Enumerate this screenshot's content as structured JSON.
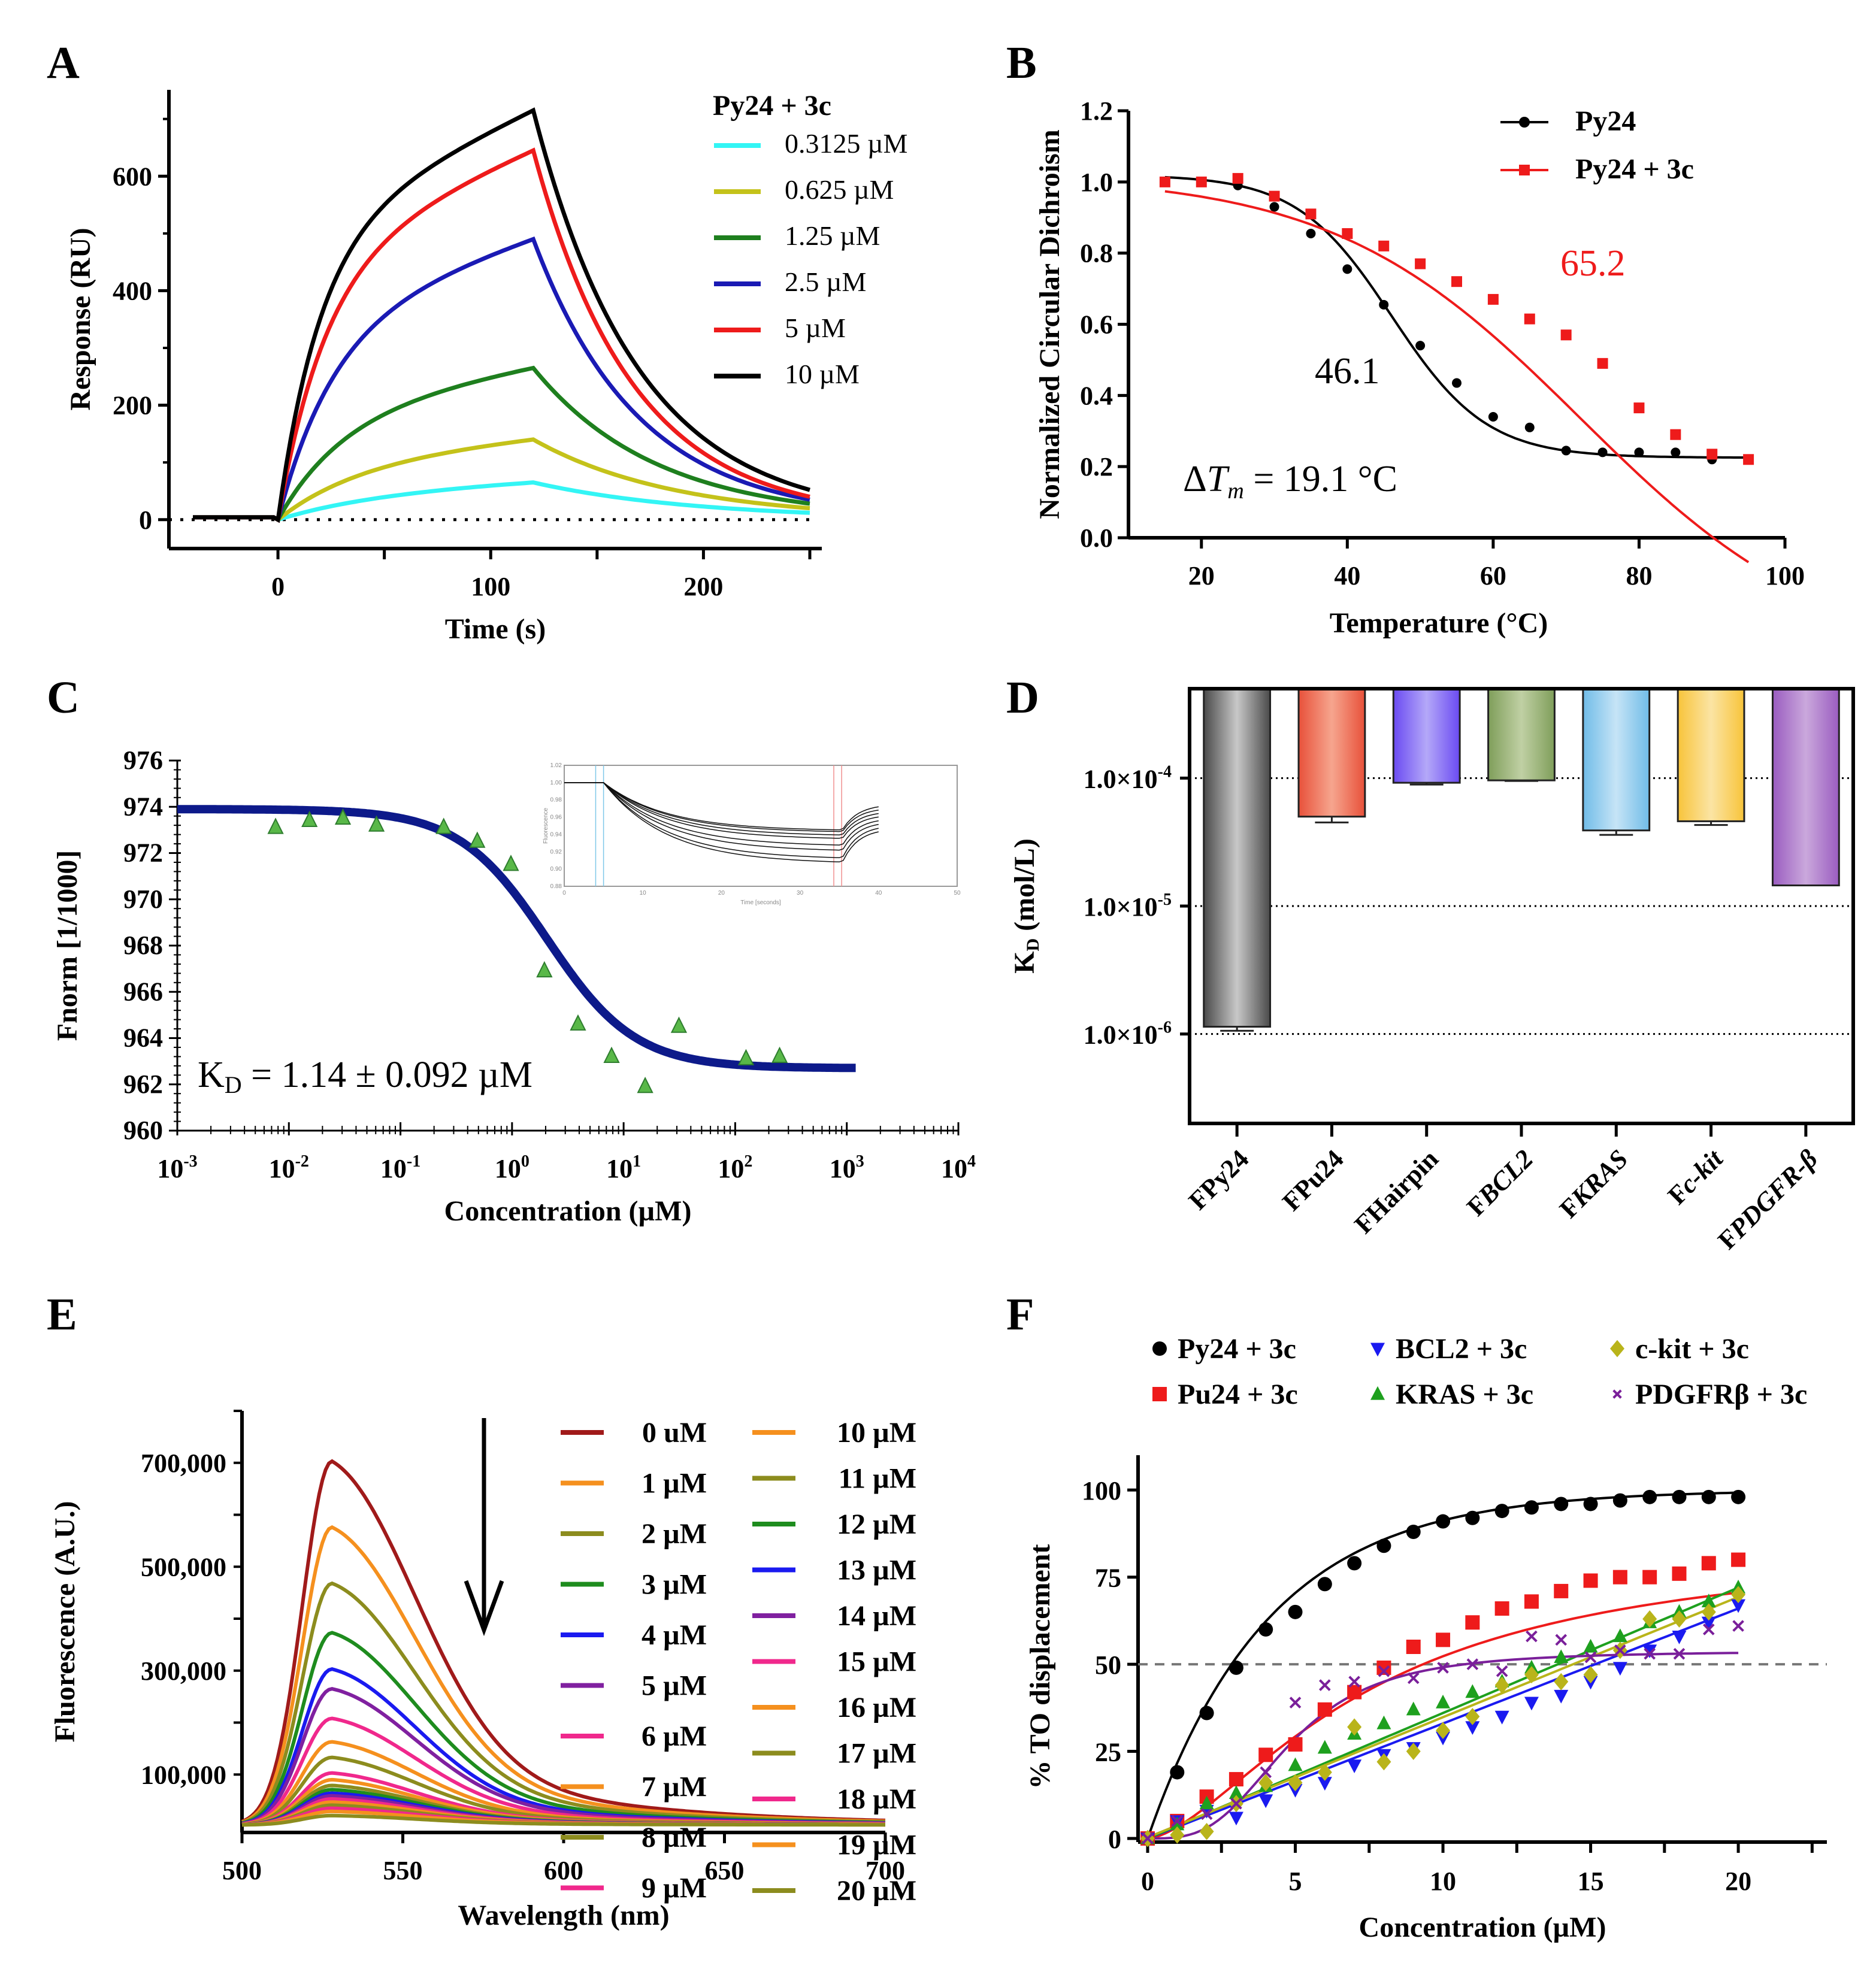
{
  "figure": {
    "panels": [
      "A",
      "B",
      "C",
      "D",
      "E",
      "F"
    ]
  },
  "chart_data": [
    {
      "panel": "A",
      "type": "line",
      "title": "",
      "legend_title": "Py24 + 3c",
      "legend_position": "top-right",
      "xlabel": "Time (s)",
      "ylabel": "Response (RU)",
      "xlim": [
        -40,
        250
      ],
      "ylim": [
        -40,
        730
      ],
      "xticks": [
        0,
        100,
        200
      ],
      "xtick_labels": [
        "0",
        "100",
        "200"
      ],
      "yticks": [
        0,
        200,
        400,
        600
      ],
      "ytick_labels": [
        "0",
        "200",
        "400",
        "600"
      ],
      "baseline": 0,
      "association_end_s": 120,
      "series": [
        {
          "name": "0.3125 µM",
          "color": "#33f5f5",
          "peak": 65,
          "end": 12
        },
        {
          "name": "0.625 µM",
          "color": "#c4c21a",
          "peak": 140,
          "end": 20
        },
        {
          "name": "1.25 µM",
          "color": "#1e7f1e",
          "peak": 265,
          "end": 28
        },
        {
          "name": "2.5 µM",
          "color": "#1a1ab4",
          "peak": 490,
          "end": 35
        },
        {
          "name": "5 µM",
          "color": "#ee1b1b",
          "peak": 645,
          "end": 40
        },
        {
          "name": "10 µM",
          "color": "#000000",
          "peak": 715,
          "end": 52
        }
      ]
    },
    {
      "panel": "B",
      "type": "scatter",
      "xlabel": "Temperature (°C)",
      "ylabel": "Normalized Circular Dichroism",
      "xlim": [
        10,
        100
      ],
      "ylim": [
        0.0,
        1.2
      ],
      "xticks": [
        20,
        40,
        60,
        80,
        100
      ],
      "xtick_labels": [
        "20",
        "40",
        "60",
        "80",
        "100"
      ],
      "yticks": [
        0.0,
        0.2,
        0.4,
        0.6,
        0.8,
        1.0,
        1.2
      ],
      "ytick_labels": [
        "0.0",
        "0.2",
        "0.4",
        "0.6",
        "0.8",
        "1.0",
        "1.2"
      ],
      "legend_position": "top-right",
      "annotations": [
        {
          "text": "46.1",
          "color": "#000000"
        },
        {
          "text": "65.2",
          "color": "#ee1b1b"
        },
        {
          "text_prefix": "ΔT",
          "text_sub": "m",
          "text_suffix": " = 19.1 °C",
          "color": "#000000"
        }
      ],
      "series": [
        {
          "name": "Py24",
          "color": "#000000",
          "marker": "circle",
          "tm": 46.1,
          "x": [
            15,
            20,
            25,
            30,
            35,
            40,
            45,
            50,
            55,
            60,
            65,
            70,
            75,
            80,
            85,
            90,
            95
          ],
          "y": [
            1.0,
            1.0,
            0.99,
            0.93,
            0.855,
            0.755,
            0.655,
            0.54,
            0.435,
            0.34,
            0.31,
            0.245,
            0.24,
            0.24,
            0.24,
            0.22,
            0.22
          ]
        },
        {
          "name": "Py24 + 3c",
          "color": "#ee1b1b",
          "marker": "square",
          "tm": 65.2,
          "x": [
            15,
            20,
            25,
            30,
            35,
            40,
            45,
            50,
            55,
            60,
            65,
            70,
            75,
            80,
            85,
            90,
            95
          ],
          "y": [
            1.0,
            1.0,
            1.01,
            0.96,
            0.91,
            0.855,
            0.82,
            0.77,
            0.72,
            0.67,
            0.615,
            0.57,
            0.49,
            0.365,
            0.29,
            0.235,
            0.22
          ]
        }
      ]
    },
    {
      "panel": "C",
      "type": "scatter",
      "xlabel": "Concentration (µM)",
      "ylabel": "Fnorm [1/1000]",
      "xscale": "log",
      "xlim_log10": [
        -3,
        4
      ],
      "ylim": [
        960,
        976
      ],
      "xtick_labels": [
        "10-3",
        "10-2",
        "10-1",
        "100",
        "101",
        "102",
        "103",
        "104"
      ],
      "xtick_base": [
        "10",
        "10",
        "10",
        "10",
        "10",
        "10",
        "10",
        "10"
      ],
      "xtick_exp": [
        "-3",
        "-2",
        "-1",
        "0",
        "1",
        "2",
        "3",
        "4"
      ],
      "yticks": [
        960,
        962,
        964,
        966,
        968,
        970,
        972,
        974,
        976
      ],
      "ytick_labels": [
        "960",
        "962",
        "964",
        "966",
        "968",
        "970",
        "972",
        "974",
        "976"
      ],
      "annotation": {
        "prefix": "K",
        "sub": "D",
        "suffix": " = 1.14 ± 0.092 µM"
      },
      "fit": {
        "top": 973.9,
        "bottom": 962.7,
        "kd_uM": 1.14,
        "color": "#0d1a8a"
      },
      "points": {
        "color": "#59b848",
        "marker": "triangle",
        "x": [
          0.0076,
          0.0153,
          0.0305,
          0.061,
          0.244,
          0.488,
          0.977,
          1.95,
          3.9,
          7.8,
          15.6,
          31.3,
          125,
          250
        ],
        "y": [
          973.1,
          973.4,
          973.5,
          973.2,
          973.1,
          972.5,
          971.5,
          966.9,
          964.6,
          963.2,
          961.9,
          964.5,
          963.1,
          963.2
        ]
      },
      "inset": {
        "xlabel": "Time [seconds]",
        "ylabel": "Fluorescence",
        "xticks": [
          "0",
          "10",
          "20",
          "30",
          "40",
          "50"
        ],
        "yticks": [
          "0.88",
          "0.90",
          "0.92",
          "0.94",
          "0.96",
          "0.98",
          "1.00",
          "1.02"
        ]
      }
    },
    {
      "panel": "D",
      "type": "bar",
      "ylabel_prefix": "K",
      "ylabel_sub": "D",
      "ylabel_suffix": " (mol/L)",
      "yscale": "log",
      "ylim": [
        2e-07,
        0.0005
      ],
      "bars_hang_from_top": true,
      "gridlines": [
        0.0001,
        1e-05,
        1e-06
      ],
      "ytick_labels": [
        "1.0×10-4",
        "1.0×10-5",
        "1.0×10-6"
      ],
      "ytick_mantissa": [
        "1.0×10",
        "1.0×10",
        "1.0×10"
      ],
      "ytick_exp": [
        "-4",
        "-5",
        "-6"
      ],
      "categories": [
        "FPy24",
        "FPu24",
        "FHairpin",
        "FBCL2",
        "FKRAS",
        "Fc-kit",
        "FPDGFR-β"
      ],
      "category_prefix": [
        "F",
        "F",
        "F",
        "F",
        "F",
        "F",
        "F"
      ],
      "category_name": [
        "Py24",
        "Pu24",
        "Hairpin",
        "BCL2",
        "KRAS",
        "c-kit",
        "PDGFR-β"
      ],
      "category_italic": [
        false,
        false,
        false,
        true,
        true,
        true,
        true
      ],
      "values": [
        1.14e-06,
        5e-05,
        9.2e-05,
        9.6e-05,
        3.9e-05,
        4.6e-05,
        1.45e-05
      ],
      "errors": [
        8e-08,
        5e-06,
        3e-06,
        1e-06,
        3e-06,
        3e-06,
        0.0
      ],
      "colors": [
        "#4a4a4a",
        "#e8513a",
        "#6a4af2",
        "#7f9e5a",
        "#70bce8",
        "#f8c43a",
        "#9a5cc0"
      ],
      "highlight_colors": [
        "#c8c8c8",
        "#f6a58e",
        "#b4a8f8",
        "#c0d0a4",
        "#c6e4f6",
        "#fbe4a4",
        "#caa8dc"
      ]
    },
    {
      "panel": "E",
      "type": "line",
      "xlabel": "Wavelength (nm)",
      "ylabel": "Fluorescence (A.U.)",
      "xlim": [
        500,
        700
      ],
      "ylim": [
        0,
        800000
      ],
      "xticks": [
        500,
        550,
        600,
        650,
        700
      ],
      "xtick_labels": [
        "500",
        "550",
        "600",
        "650",
        "700"
      ],
      "yticks": [
        100000,
        300000,
        500000,
        700000
      ],
      "ytick_labels": [
        "100,000",
        "300,000",
        "500,000",
        "700,000"
      ],
      "peak_wavelength_nm": 528,
      "arrow": "down",
      "legend_position": "top-right",
      "series": [
        {
          "name": "0 uM",
          "color": "#a01a1a",
          "peak": 700000
        },
        {
          "name": "1 µM",
          "color": "#f5901e",
          "peak": 573000
        },
        {
          "name": "2 µM",
          "color": "#8c8c1e",
          "peak": 465000
        },
        {
          "name": "3 µM",
          "color": "#1e8c1e",
          "peak": 370000
        },
        {
          "name": "4 µM",
          "color": "#1a1af0",
          "peak": 300000
        },
        {
          "name": "5 µM",
          "color": "#8020a0",
          "peak": 262000
        },
        {
          "name": "6 µM",
          "color": "#f0288c",
          "peak": 205000
        },
        {
          "name": "7 µM",
          "color": "#f5901e",
          "peak": 160000
        },
        {
          "name": "8 µM",
          "color": "#8c8c1e",
          "peak": 130000
        },
        {
          "name": "9 µM",
          "color": "#f0288c",
          "peak": 100000
        },
        {
          "name": "10 µM",
          "color": "#f5901e",
          "peak": 87000
        },
        {
          "name": "11 µM",
          "color": "#8c8c1e",
          "peak": 76000
        },
        {
          "name": "12 µM",
          "color": "#1e8c1e",
          "peak": 68000
        },
        {
          "name": "13 µM",
          "color": "#1a1af0",
          "peak": 61000
        },
        {
          "name": "14 µM",
          "color": "#8020a0",
          "peak": 56000
        },
        {
          "name": "15 µM",
          "color": "#f0288c",
          "peak": 50000
        },
        {
          "name": "16 µM",
          "color": "#f5901e",
          "peak": 44000
        },
        {
          "name": "17 µM",
          "color": "#8c8c1e",
          "peak": 38000
        },
        {
          "name": "18 µM",
          "color": "#f0288c",
          "peak": 32000
        },
        {
          "name": "19 µM",
          "color": "#f5901e",
          "peak": 26000
        },
        {
          "name": "20 µM",
          "color": "#8c8c1e",
          "peak": 18000
        }
      ]
    },
    {
      "panel": "F",
      "type": "scatter",
      "xlabel": "Concentration (µM)",
      "ylabel": "% TO displacement",
      "xlim": [
        0,
        23
      ],
      "ylim": [
        0,
        110
      ],
      "xticks": [
        0,
        5,
        10,
        15,
        20
      ],
      "xtick_labels": [
        "0",
        "5",
        "10",
        "15",
        "20"
      ],
      "yticks": [
        0,
        25,
        50,
        75,
        100
      ],
      "ytick_labels": [
        "0",
        "25",
        "50",
        "75",
        "100"
      ],
      "reference_line": 50,
      "legend_position": "top",
      "x": [
        0,
        1,
        2,
        3,
        4,
        5,
        6,
        7,
        8,
        9,
        10,
        11,
        12,
        13,
        14,
        15,
        16,
        17,
        18,
        19,
        20
      ],
      "series": [
        {
          "name": "Py24 + 3c",
          "color": "#000000",
          "marker": "circle",
          "y": [
            0,
            19,
            36,
            49,
            60,
            65,
            73,
            79,
            84,
            88,
            91,
            92,
            94,
            95,
            96,
            96,
            97,
            98,
            98,
            98,
            98
          ]
        },
        {
          "name": "Pu24 + 3c",
          "color": "#ee1b1b",
          "marker": "square",
          "y": [
            0,
            5,
            12,
            17,
            24,
            27,
            37,
            42,
            49,
            55,
            57,
            62,
            66,
            68,
            71,
            74,
            75,
            75,
            76,
            79,
            80
          ]
        },
        {
          "name": "BCL2 + 3c",
          "color": "#1a1af0",
          "marker": "triangle-down",
          "y": [
            0,
            5,
            8,
            6,
            11,
            14,
            16,
            21,
            24,
            26,
            29,
            32,
            35,
            39,
            41,
            45,
            49,
            54,
            58,
            62,
            67
          ]
        },
        {
          "name": "KRAS + 3c",
          "color": "#1ea01e",
          "marker": "triangle-up",
          "y": [
            0,
            4,
            10,
            13,
            15,
            21,
            26,
            30,
            33,
            37,
            39,
            42,
            45,
            49,
            52,
            55,
            58,
            62,
            65,
            68,
            72
          ]
        },
        {
          "name": "c-kit + 3c",
          "color": "#b9b41a",
          "marker": "diamond",
          "y": [
            0,
            1,
            2,
            10,
            16,
            16,
            19,
            32,
            22,
            25,
            31,
            35,
            44,
            47,
            45,
            47,
            54,
            63,
            63,
            65,
            70
          ]
        },
        {
          "name": "PDGFRβ + 3c",
          "color": "#7a1f9a",
          "marker": "x",
          "y": [
            0,
            5,
            7,
            10,
            19,
            39,
            44,
            45,
            48,
            46,
            49,
            50,
            48,
            58,
            57,
            52,
            54,
            53,
            53,
            60,
            61
          ]
        }
      ]
    }
  ]
}
